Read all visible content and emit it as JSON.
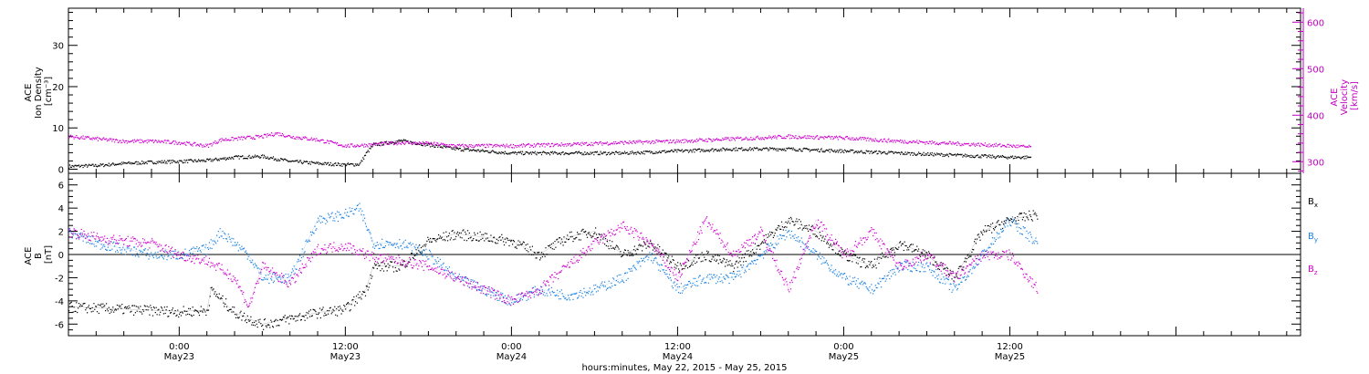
{
  "chart_data": [
    {
      "type": "scatter",
      "panel": "top",
      "ylabel_left": [
        "ACE",
        "Ion Density",
        "[cm⁻³]"
      ],
      "ylabel_right": [
        "ACE",
        "Velocity",
        "[km/s]"
      ],
      "ylim_left": [
        -1,
        39
      ],
      "ylim_right": [
        275,
        630
      ],
      "yticks_left": [
        0,
        10,
        20,
        30
      ],
      "yticks_right": [
        300,
        400,
        500,
        600
      ],
      "right_axis_color": "#cc00cc",
      "series": [
        {
          "axis": "left",
          "color": "#000000",
          "x_hours": [
            -8,
            -6,
            -4,
            -2,
            0,
            2,
            4,
            6,
            8,
            10,
            12,
            13,
            13.5,
            14,
            16,
            18,
            20,
            22,
            24,
            28,
            32,
            36,
            40,
            44,
            48,
            52,
            56,
            60,
            61.5
          ],
          "y": [
            0.8,
            1,
            1.5,
            1.8,
            2,
            2.2,
            3,
            3.2,
            2,
            1.5,
            1.2,
            1.3,
            4,
            6,
            7,
            6,
            5,
            4.5,
            4,
            4,
            4,
            4.5,
            5,
            5,
            4.5,
            4,
            3.5,
            3,
            3
          ]
        },
        {
          "axis": "right",
          "color": "#cc00cc",
          "x_hours": [
            -8,
            -6,
            -4,
            -2,
            0,
            2,
            3,
            6,
            7,
            8,
            10,
            12,
            13,
            14,
            16,
            18,
            20,
            22,
            24,
            28,
            32,
            36,
            40,
            44,
            48,
            52,
            56,
            60,
            61.5
          ],
          "y": [
            355,
            350,
            345,
            345,
            342,
            335,
            348,
            355,
            362,
            355,
            348,
            335,
            336,
            338,
            342,
            340,
            335,
            335,
            335,
            338,
            342,
            345,
            350,
            355,
            352,
            345,
            340,
            335,
            332
          ]
        }
      ]
    },
    {
      "type": "scatter",
      "panel": "bottom",
      "ylabel": [
        "ACE",
        "B",
        "[nT]"
      ],
      "ylim": [
        -7,
        7
      ],
      "yticks": [
        -6,
        -4,
        -2,
        0,
        2,
        4,
        6
      ],
      "zero_line": true,
      "series": [
        {
          "name": "B",
          "sub": "x",
          "color": "#000000",
          "x_hours": [
            -8,
            -4,
            0,
            2,
            2.3,
            4,
            6,
            8,
            10,
            12,
            13.5,
            14,
            16,
            18,
            20,
            22,
            24,
            26,
            28,
            30,
            32,
            34,
            36,
            38,
            40,
            42,
            44,
            46,
            48,
            50,
            52,
            54,
            56,
            58,
            60,
            62
          ],
          "y": [
            -4.5,
            -4.7,
            -4.9,
            -4.8,
            -3,
            -5,
            -6,
            -5.5,
            -5,
            -4.7,
            -3,
            -1,
            -1,
            1.2,
            1.8,
            1.5,
            1.2,
            0,
            1.5,
            2,
            0,
            1,
            -1,
            0,
            -1,
            1,
            3,
            2,
            0,
            -1,
            1,
            0,
            -2,
            2,
            3,
            3.5
          ]
        },
        {
          "name": "B",
          "sub": "y",
          "color": "#1a80e0",
          "x_hours": [
            -8,
            -6,
            -4,
            -2,
            0,
            2,
            3,
            5,
            6,
            8,
            10,
            12,
            13,
            14,
            16,
            18,
            20,
            22,
            24,
            26,
            28,
            30,
            32,
            34,
            36,
            38,
            40,
            42,
            44,
            46,
            48,
            50,
            52,
            54,
            56,
            58,
            60,
            62
          ],
          "y": [
            2,
            1,
            0.5,
            0,
            0,
            0.5,
            2,
            0,
            -2,
            -2,
            3,
            3.5,
            4,
            1,
            1,
            0,
            -2,
            -3,
            -4,
            -3,
            -3.5,
            -3,
            -2,
            0,
            -3,
            -2,
            -2,
            0,
            2,
            0,
            -2,
            -3,
            -1,
            -1,
            -3,
            0,
            3,
            1
          ]
        },
        {
          "name": "B",
          "sub": "z",
          "color": "#cc00cc",
          "x_hours": [
            -8,
            -6,
            -4,
            -2,
            0,
            2,
            4,
            5,
            6,
            8,
            10,
            12,
            14,
            16,
            18,
            20,
            22,
            24,
            26,
            28,
            30,
            32,
            34,
            36,
            38,
            40,
            42,
            44,
            46,
            48,
            50,
            52,
            54,
            56,
            58,
            60,
            62
          ],
          "y": [
            2,
            1.5,
            1.2,
            1,
            0,
            -0.5,
            -2,
            -4.5,
            -1,
            -2.5,
            0.5,
            0.8,
            -0.2,
            -0.5,
            -1,
            -2,
            -3,
            -4,
            -3,
            -1,
            1,
            2.5,
            1,
            -2,
            3,
            0,
            2,
            -3,
            3,
            0,
            2,
            -1,
            0,
            -2,
            0,
            0,
            -3
          ]
        }
      ]
    }
  ],
  "x_axis": {
    "range_hours": [
      -8,
      81
    ],
    "major_ticks": [
      {
        "hour": 0,
        "time": "0:00",
        "date": "May23"
      },
      {
        "hour": 12,
        "time": "12:00",
        "date": "May23"
      },
      {
        "hour": 24,
        "time": "0:00",
        "date": "May24"
      },
      {
        "hour": 36,
        "time": "12:00",
        "date": "May24"
      },
      {
        "hour": 48,
        "time": "0:00",
        "date": "May25"
      },
      {
        "hour": 60,
        "time": "12:00",
        "date": "May25"
      }
    ],
    "title": "hours:minutes, May 22, 2015 - May 25, 2015"
  }
}
